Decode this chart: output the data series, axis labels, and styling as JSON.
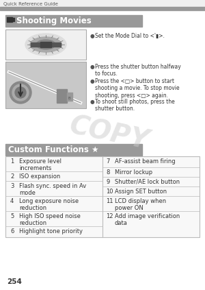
{
  "page_bg": "#ffffff",
  "header_text": "Quick Reference Guide",
  "header_text_color": "#333333",
  "header_bar_color": "#aaaaaa",
  "header_top_color": "#f5f5f5",
  "section1_title": "▮  Shooting Movies",
  "section1_title_bg": "#888888",
  "section1_title_color": "#ffffff",
  "bullet_points": [
    "Set the Mode Dial to <'▮>.",
    "Press the shutter button halfway\nto focus.",
    "Press the <□> button to start\nshooting a movie. To stop movie\nshooting, press <□> again.",
    "To shoot still photos, press the\nshutter button."
  ],
  "copy_watermark": "COPY",
  "section2_title": "Custom Functions ★",
  "section2_title_bg": "#888888",
  "section2_title_color": "#ffffff",
  "left_items": [
    [
      1,
      "Exposure level\nincrements"
    ],
    [
      2,
      "ISO expansion"
    ],
    [
      3,
      "Flash sync. speed in Av\nmode"
    ],
    [
      4,
      "Long exposure noise\nreduction"
    ],
    [
      5,
      "High ISO speed noise\nreduction"
    ],
    [
      6,
      "Highlight tone priority"
    ]
  ],
  "right_items": [
    [
      7,
      "AF-assist beam firing"
    ],
    [
      8,
      "Mirror lockup"
    ],
    [
      9,
      "Shutter/AE lock button"
    ],
    [
      10,
      "Assign SET button"
    ],
    [
      11,
      "LCD display when\npower ON"
    ],
    [
      12,
      "Add image verification\ndata"
    ]
  ],
  "page_number": "254",
  "table_line_color": "#bbbbbb",
  "row_heights_left": [
    22,
    14,
    22,
    22,
    22,
    16
  ],
  "row_heights_right": [
    16,
    14,
    14,
    14,
    22,
    22
  ]
}
